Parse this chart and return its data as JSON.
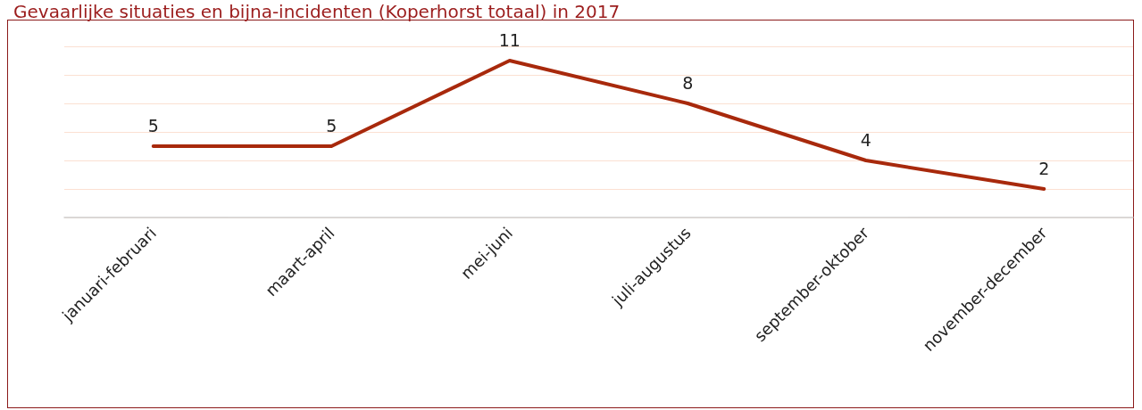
{
  "chart_data": {
    "type": "line",
    "title": "Gevaarlijke situaties en bijna-incidenten (Koperhorst totaal) in 2017",
    "categories": [
      "januari-februari",
      "maart-april",
      "mei-juni",
      "juli-augustus",
      "september-oktober",
      "november-december"
    ],
    "series": [
      {
        "color": "#a8290c",
        "values": [
          5,
          5,
          11,
          8,
          4,
          2
        ]
      }
    ],
    "ylim": [
      0,
      12
    ],
    "yticks": [
      {
        "value": 0,
        "label": null
      },
      {
        "value": 2,
        "label": null
      },
      {
        "value": 4,
        "label": null
      },
      {
        "value": 6,
        "label": null
      },
      {
        "value": 8,
        "label": null
      },
      {
        "value": 10,
        "label": null
      },
      {
        "value": 12,
        "label": null
      }
    ],
    "grid": "y",
    "data_labels": true,
    "marker": "none",
    "line_style": "solid",
    "tick_labels": "x"
  }
}
